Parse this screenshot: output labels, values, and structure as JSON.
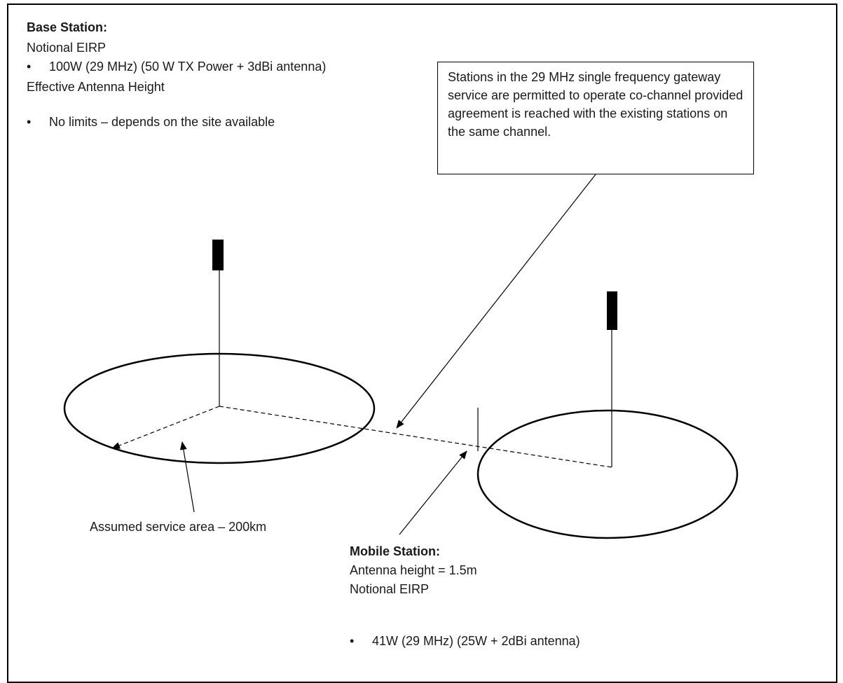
{
  "base_station": {
    "title": "Base Station:",
    "eirp_label": "Notional EIRP",
    "eirp_value": "100W (29 MHz) (50 W TX Power + 3dBi antenna)",
    "height_label": "Effective Antenna Height",
    "height_value": "No limits – depends on the site available"
  },
  "callout": {
    "text": "Stations in the 29 MHz single frequency gateway service are permitted to operate co-channel provided agreement is reached with the existing stations on the same channel."
  },
  "service_area_label": "Assumed service area – 200km",
  "mobile_station": {
    "title": "Mobile Station:",
    "height": "Antenna height = 1.5m",
    "eirp_label": "Notional EIRP",
    "eirp_value": "41W (29 MHz) (25W + 2dBi antenna)"
  }
}
